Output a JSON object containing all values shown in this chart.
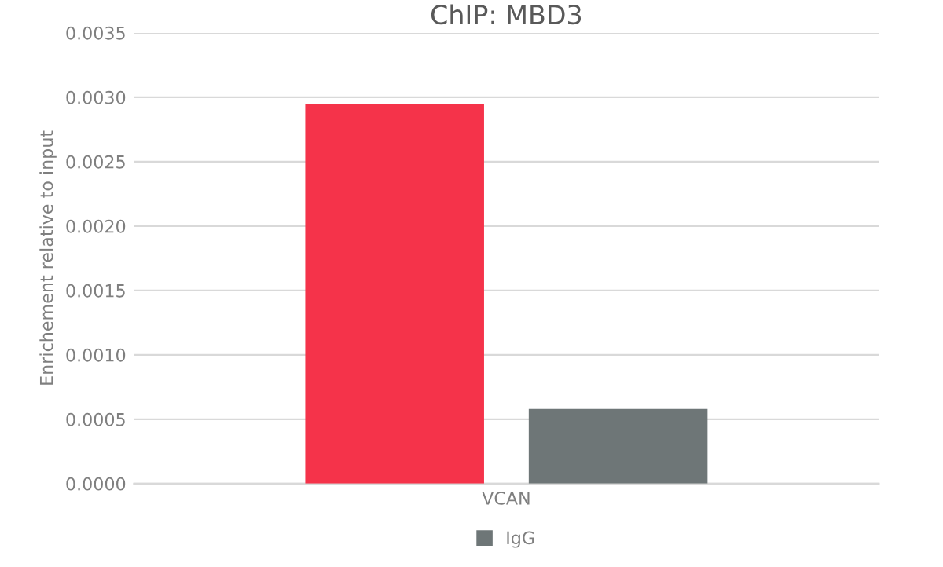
{
  "chart_data": {
    "type": "bar",
    "title": "ChIP: MBD3",
    "ylabel": "Enrichement relative to input",
    "categories": [
      "VCAN"
    ],
    "series": [
      {
        "color": "#f5334a",
        "values": [
          0.00295
        ]
      },
      {
        "name": "IgG",
        "color": "#6e7677",
        "values": [
          0.00058
        ]
      }
    ],
    "ylim": [
      0,
      0.0035
    ],
    "yticks": [
      {
        "value": 0,
        "label": "0.0000"
      },
      {
        "value": 0.0005,
        "label": "0.0005"
      },
      {
        "value": 0.001,
        "label": "0.0010"
      },
      {
        "value": 0.0015,
        "label": "0.0015"
      },
      {
        "value": 0.002,
        "label": "0.0020"
      },
      {
        "value": 0.0025,
        "label": "0.0025"
      },
      {
        "value": 0.003,
        "label": "0.0030"
      },
      {
        "value": 0.0035,
        "label": "0.0035"
      }
    ],
    "grid": "y",
    "legend": "bottom"
  }
}
